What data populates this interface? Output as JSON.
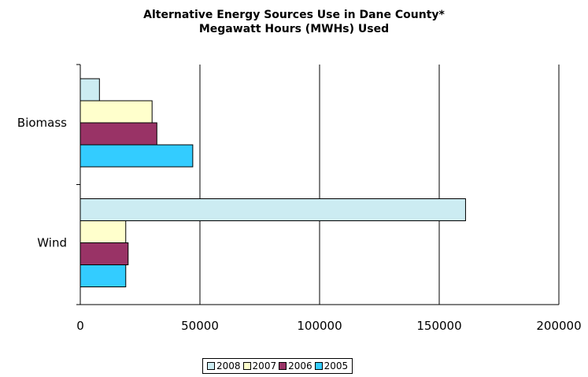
{
  "chart_data": {
    "type": "bar",
    "orientation": "horizontal",
    "title": "Alternative Energy Sources Use in Dane County*",
    "subtitle": "Megawatt Hours (MWHs) Used",
    "categories": [
      "Biomass",
      "Wind"
    ],
    "series": [
      {
        "name": "2008",
        "color": "#ccecf2",
        "values": [
          8000,
          161000
        ]
      },
      {
        "name": "2007",
        "color": "#ffffcc",
        "values": [
          30000,
          19000
        ]
      },
      {
        "name": "2006",
        "color": "#993366",
        "values": [
          32000,
          20000
        ]
      },
      {
        "name": "2005",
        "color": "#33ccff",
        "values": [
          47000,
          19000
        ]
      }
    ],
    "xlim": [
      0,
      200000
    ],
    "xticks": [
      "0",
      "50000",
      "100000",
      "150000",
      "200000"
    ],
    "xtick_values": [
      0,
      50000,
      100000,
      150000,
      200000
    ],
    "grid": "vertical",
    "legend": "bottom"
  }
}
